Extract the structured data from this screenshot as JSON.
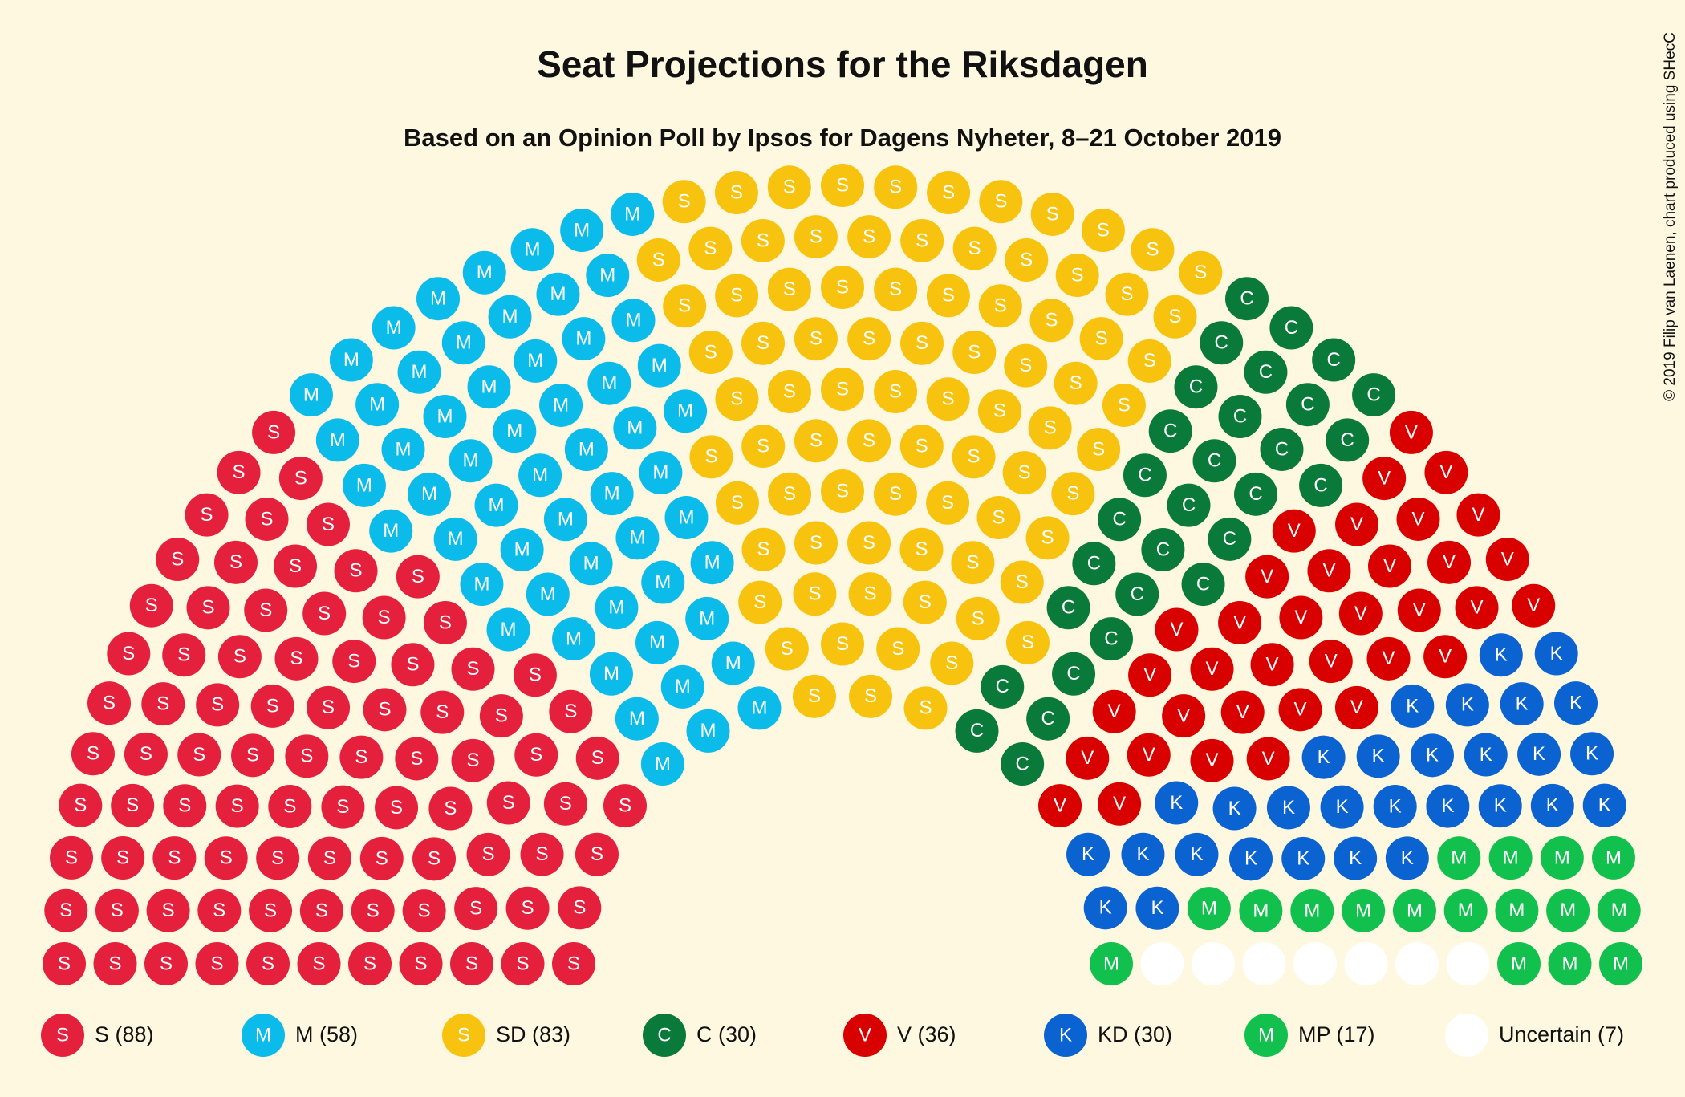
{
  "chart_data": {
    "type": "parliament",
    "title": "Seat Projections for the Riksdagen",
    "subtitle": "Based on an Opinion Poll by Ipsos for Dagens Nyheter, 8–21 October 2019",
    "credit": "© 2019 Filip van Laenen, chart produced using SHecC",
    "series": [
      {
        "name": "S",
        "symbol": "S",
        "color": "#e5203c",
        "values": [
          88
        ],
        "value_labels": [
          "S (88)"
        ]
      },
      {
        "name": "M",
        "symbol": "M",
        "color": "#0bbbea",
        "values": [
          58
        ],
        "value_labels": [
          "M (58)"
        ]
      },
      {
        "name": "SD",
        "symbol": "S",
        "color": "#f8c30f",
        "values": [
          83
        ],
        "value_labels": [
          "SD (83)"
        ]
      },
      {
        "name": "C",
        "symbol": "C",
        "color": "#0a7a3a",
        "values": [
          30
        ],
        "value_labels": [
          "C (30)"
        ]
      },
      {
        "name": "V",
        "symbol": "V",
        "color": "#d90000",
        "values": [
          36
        ],
        "value_labels": [
          "V (36)"
        ]
      },
      {
        "name": "KD",
        "symbol": "K",
        "color": "#0b62d1",
        "values": [
          30
        ],
        "value_labels": [
          "KD (30)"
        ]
      },
      {
        "name": "MP",
        "symbol": "M",
        "color": "#12c04e",
        "values": [
          17
        ],
        "value_labels": [
          "MP (17)"
        ]
      },
      {
        "name": "Uncertain",
        "color": "#ffffff",
        "values": [
          7
        ],
        "value_labels": [
          "Uncertain (7)"
        ]
      }
    ]
  }
}
